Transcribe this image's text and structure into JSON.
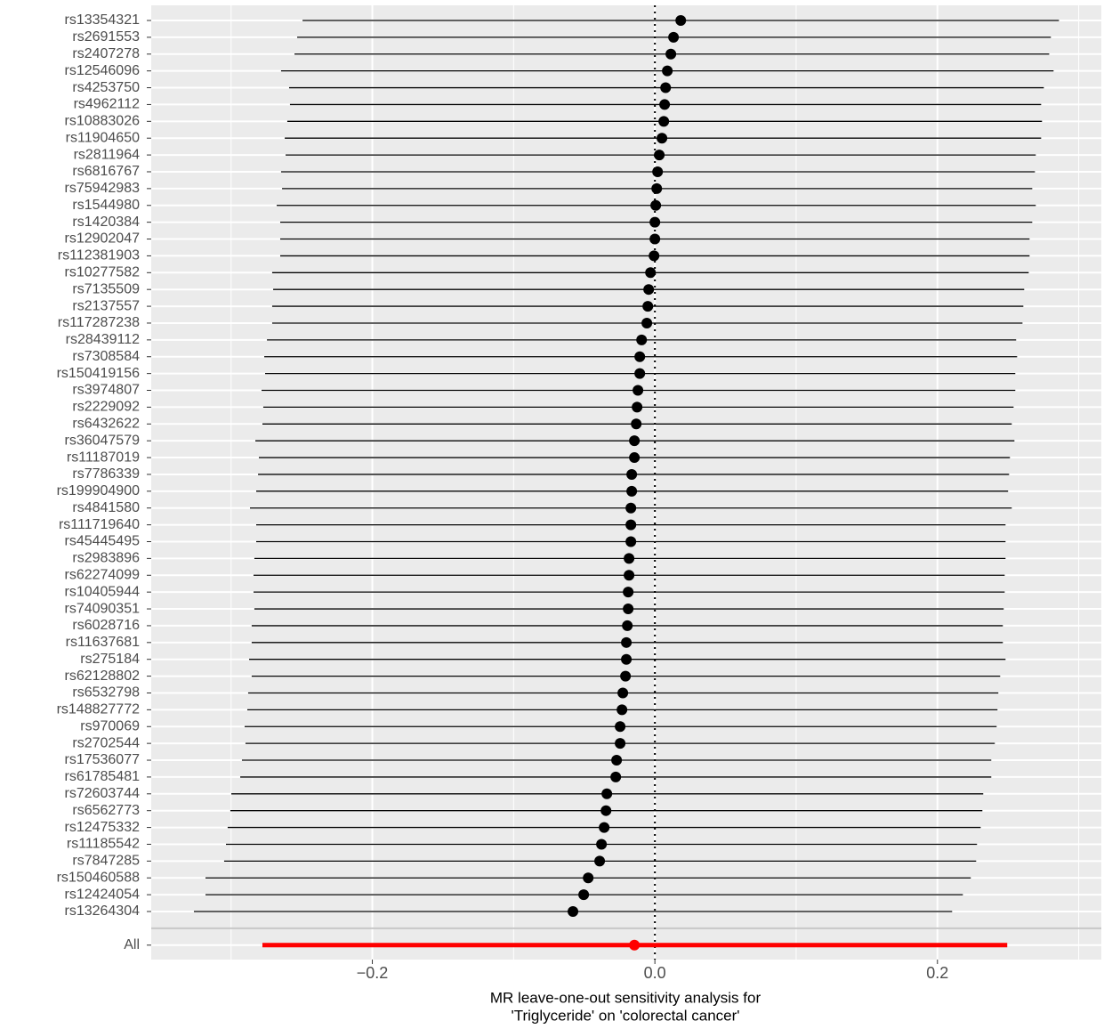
{
  "chart_data": {
    "type": "forest",
    "xlabel": [
      "MR leave-one-out sensitivity analysis for",
      "'Triglyceride' on 'colorectal cancer'"
    ],
    "categories": [
      "rs13354321",
      "rs2691553",
      "rs2407278",
      "rs12546096",
      "rs4253750",
      "rs4962112",
      "rs10883026",
      "rs11904650",
      "rs2811964",
      "rs6816767",
      "rs75942983",
      "rs1544980",
      "rs1420384",
      "rs12902047",
      "rs112381903",
      "rs10277582",
      "rs7135509",
      "rs2137557",
      "rs117287238",
      "rs28439112",
      "rs7308584",
      "rs150419156",
      "rs3974807",
      "rs2229092",
      "rs6432622",
      "rs36047579",
      "rs11187019",
      "rs7786339",
      "rs199904900",
      "rs4841580",
      "rs111719640",
      "rs45445495",
      "rs2983896",
      "rs62274099",
      "rs10405944",
      "rs74090351",
      "rs6028716",
      "rs11637681",
      "rs275184",
      "rs62128802",
      "rs6532798",
      "rs148827772",
      "rs970069",
      "rs2702544",
      "rs17536077",
      "rs61785481",
      "rs72603744",
      "rs6562773",
      "rs12475332",
      "rs11185542",
      "rs7847285",
      "rs150460588",
      "rs12424054",
      "rs13264304",
      "All"
    ],
    "values": [
      0.0183,
      0.0132,
      0.0113,
      0.0088,
      0.0076,
      0.0069,
      0.0063,
      0.005,
      0.0031,
      0.0019,
      0.0013,
      0.0006,
      0,
      0,
      -0.0006,
      -0.0031,
      -0.0044,
      -0.005,
      -0.0057,
      -0.0094,
      -0.0107,
      -0.0107,
      -0.012,
      -0.0126,
      -0.0132,
      -0.0145,
      -0.0145,
      -0.0164,
      -0.0164,
      -0.017,
      -0.017,
      -0.017,
      -0.0183,
      -0.0183,
      -0.0189,
      -0.0189,
      -0.0195,
      -0.0202,
      -0.0202,
      -0.0208,
      -0.0227,
      -0.0233,
      -0.0246,
      -0.0246,
      -0.0271,
      -0.0277,
      -0.034,
      -0.0346,
      -0.0359,
      -0.0378,
      -0.0391,
      -0.0472,
      -0.0504,
      -0.058,
      -0.0145
    ],
    "lower": [
      -0.2494,
      -0.2532,
      -0.2551,
      -0.2646,
      -0.2589,
      -0.2583,
      -0.2602,
      -0.262,
      -0.2614,
      -0.2646,
      -0.2639,
      -0.2677,
      -0.2652,
      -0.2652,
      -0.2652,
      -0.2709,
      -0.2702,
      -0.2709,
      -0.2709,
      -0.2746,
      -0.2765,
      -0.2759,
      -0.2784,
      -0.2772,
      -0.2778,
      -0.2828,
      -0.2803,
      -0.2809,
      -0.2822,
      -0.2866,
      -0.2822,
      -0.2822,
      -0.2835,
      -0.2841,
      -0.2841,
      -0.2835,
      -0.2854,
      -0.2854,
      -0.2872,
      -0.2854,
      -0.2879,
      -0.2885,
      -0.2904,
      -0.2898,
      -0.2923,
      -0.2935,
      -0.2998,
      -0.3005,
      -0.3024,
      -0.3036,
      -0.3049,
      -0.3181,
      -0.3181,
      -0.3263,
      -0.2778
    ],
    "upper": [
      0.286,
      0.2803,
      0.2791,
      0.2822,
      0.2753,
      0.2734,
      0.274,
      0.2734,
      0.2696,
      0.269,
      0.2671,
      0.2696,
      0.2671,
      0.2652,
      0.2652,
      0.2646,
      0.2614,
      0.2608,
      0.2602,
      0.2557,
      0.2564,
      0.2551,
      0.2551,
      0.2539,
      0.2526,
      0.2545,
      0.2513,
      0.2507,
      0.25,
      0.2526,
      0.2482,
      0.2482,
      0.2482,
      0.2476,
      0.2476,
      0.2469,
      0.2463,
      0.2463,
      0.2482,
      0.2444,
      0.2431,
      0.2425,
      0.2419,
      0.2406,
      0.2381,
      0.2381,
      0.2324,
      0.2318,
      0.2306,
      0.228,
      0.2274,
      0.2236,
      0.218,
      0.2104,
      0.2494
    ],
    "color": "#000000",
    "summary_color": "#ff0000",
    "reference_line": 0,
    "xlim": [
      -0.3565,
      0.316
    ],
    "xticks": [
      {
        "value": -0.2,
        "label": "−0.2"
      },
      {
        "value": 0,
        "label": "0.0"
      },
      0.2
    ],
    "grid": true
  }
}
